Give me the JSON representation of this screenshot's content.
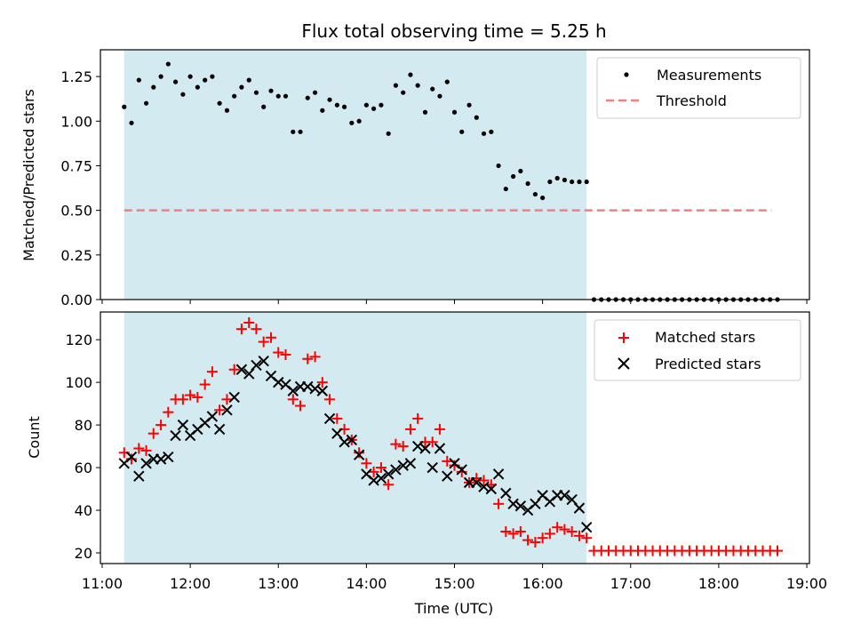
{
  "figure": {
    "title": "Flux total observing time = 5.25 h",
    "xlabel": "Time (UTC)",
    "x_ticks": [
      "11:00",
      "12:00",
      "13:00",
      "14:00",
      "15:00",
      "16:00",
      "17:00",
      "18:00",
      "19:00"
    ],
    "x_tick_hours": [
      11,
      12,
      13,
      14,
      15,
      16,
      17,
      18,
      19
    ],
    "xlim_hours": [
      10.98,
      19.03
    ],
    "observing_window_hours": [
      11.25,
      16.5
    ],
    "observing_window_color": "#d3eaf0"
  },
  "chart_data": [
    {
      "type": "scatter",
      "ylabel": "Matched/Predicted stars",
      "ylim": [
        0,
        1.4
      ],
      "y_ticks": [
        "0.00",
        "0.25",
        "0.50",
        "0.75",
        "1.00",
        "1.25"
      ],
      "y_tick_values": [
        0,
        0.25,
        0.5,
        0.75,
        1.0,
        1.25
      ],
      "legend_position": "top-right",
      "series": [
        {
          "name": "Measurements",
          "marker": "dot",
          "color": "#000000",
          "x_hours": [
            11.25,
            11.333,
            11.417,
            11.5,
            11.583,
            11.667,
            11.75,
            11.833,
            11.917,
            12.0,
            12.083,
            12.167,
            12.25,
            12.333,
            12.417,
            12.5,
            12.583,
            12.667,
            12.75,
            12.833,
            12.917,
            13.0,
            13.083,
            13.167,
            13.25,
            13.333,
            13.417,
            13.5,
            13.583,
            13.667,
            13.75,
            13.833,
            13.917,
            14.0,
            14.083,
            14.167,
            14.25,
            14.333,
            14.417,
            14.5,
            14.583,
            14.667,
            14.75,
            14.833,
            14.917,
            15.0,
            15.083,
            15.167,
            15.25,
            15.333,
            15.417,
            15.5,
            15.583,
            15.667,
            15.75,
            15.833,
            15.917,
            16.0,
            16.083,
            16.167,
            16.25,
            16.333,
            16.417,
            16.5,
            16.583,
            16.667,
            16.75,
            16.833,
            16.917,
            17.0,
            17.083,
            17.167,
            17.25,
            17.333,
            17.417,
            17.5,
            17.583,
            17.667,
            17.75,
            17.833,
            17.917,
            18.0,
            18.083,
            18.167,
            18.25,
            18.333,
            18.417,
            18.5,
            18.583,
            18.667
          ],
          "values": [
            1.08,
            0.99,
            1.23,
            1.1,
            1.19,
            1.25,
            1.32,
            1.22,
            1.15,
            1.25,
            1.19,
            1.23,
            1.25,
            1.1,
            1.06,
            1.14,
            1.19,
            1.23,
            1.16,
            1.08,
            1.17,
            1.14,
            1.14,
            0.94,
            0.94,
            1.13,
            1.16,
            1.06,
            1.12,
            1.09,
            1.08,
            0.99,
            1.0,
            1.09,
            1.07,
            1.09,
            0.93,
            1.2,
            1.16,
            1.26,
            1.2,
            1.05,
            1.18,
            1.14,
            1.22,
            1.05,
            0.94,
            1.09,
            1.02,
            0.93,
            0.94,
            0.75,
            0.62,
            0.69,
            0.72,
            0.65,
            0.59,
            0.57,
            0.66,
            0.68,
            0.67,
            0.66,
            0.66,
            0.66,
            0,
            0,
            0,
            0,
            0,
            0,
            0,
            0,
            0,
            0,
            0,
            0,
            0,
            0,
            0,
            0,
            0,
            0,
            0,
            0,
            0,
            0,
            0,
            0,
            0,
            0
          ]
        },
        {
          "name": "Threshold",
          "marker": "dashed-line",
          "color": "#f08080",
          "x_hours": [
            11.25,
            18.6
          ],
          "values": [
            0.5,
            0.5
          ]
        }
      ]
    },
    {
      "type": "scatter",
      "ylabel": "Count",
      "ylim": [
        15,
        133
      ],
      "y_ticks": [
        "20",
        "40",
        "60",
        "80",
        "100",
        "120"
      ],
      "y_tick_values": [
        20,
        40,
        60,
        80,
        100,
        120
      ],
      "legend_position": "top-right",
      "series": [
        {
          "name": "Matched stars",
          "marker": "plus",
          "color": "#ff0000",
          "x_hours": [
            11.25,
            11.333,
            11.417,
            11.5,
            11.583,
            11.667,
            11.75,
            11.833,
            11.917,
            12.0,
            12.083,
            12.167,
            12.25,
            12.333,
            12.417,
            12.5,
            12.583,
            12.667,
            12.75,
            12.833,
            12.917,
            13.0,
            13.083,
            13.167,
            13.25,
            13.333,
            13.417,
            13.5,
            13.583,
            13.667,
            13.75,
            13.833,
            13.917,
            14.0,
            14.083,
            14.167,
            14.25,
            14.333,
            14.417,
            14.5,
            14.583,
            14.667,
            14.75,
            14.833,
            14.917,
            15.0,
            15.083,
            15.167,
            15.25,
            15.333,
            15.417,
            15.5,
            15.583,
            15.667,
            15.75,
            15.833,
            15.917,
            16.0,
            16.083,
            16.167,
            16.25,
            16.333,
            16.417,
            16.5,
            16.583,
            16.667,
            16.75,
            16.833,
            16.917,
            17.0,
            17.083,
            17.167,
            17.25,
            17.333,
            17.417,
            17.5,
            17.583,
            17.667,
            17.75,
            17.833,
            17.917,
            18.0,
            18.083,
            18.167,
            18.25,
            18.333,
            18.417,
            18.5,
            18.583,
            18.667
          ],
          "values": [
            67,
            64,
            69,
            68,
            76,
            80,
            86,
            92,
            92,
            94,
            93,
            99,
            105,
            87,
            92,
            106,
            125,
            128,
            125,
            119,
            121,
            114,
            113,
            92,
            89,
            111,
            112,
            100,
            92,
            83,
            78,
            73,
            67,
            62,
            58,
            60,
            52,
            71,
            70,
            78,
            83,
            72,
            72,
            78,
            63,
            61,
            58,
            53,
            55,
            54,
            52,
            43,
            30,
            29,
            30,
            26,
            25,
            27,
            29,
            32,
            31,
            30,
            28,
            27,
            21,
            21,
            21,
            21,
            21,
            21,
            21,
            21,
            21,
            21,
            21,
            21,
            21,
            21,
            21,
            21,
            21,
            21,
            21,
            21,
            21,
            21,
            21,
            21,
            21,
            21
          ]
        },
        {
          "name": "Predicted stars",
          "marker": "x",
          "color": "#000000",
          "x_hours": [
            11.25,
            11.333,
            11.417,
            11.5,
            11.583,
            11.667,
            11.75,
            11.833,
            11.917,
            12.0,
            12.083,
            12.167,
            12.25,
            12.333,
            12.417,
            12.5,
            12.583,
            12.667,
            12.75,
            12.833,
            12.917,
            13.0,
            13.083,
            13.167,
            13.25,
            13.333,
            13.417,
            13.5,
            13.583,
            13.667,
            13.75,
            13.833,
            13.917,
            14.0,
            14.083,
            14.167,
            14.25,
            14.333,
            14.417,
            14.5,
            14.583,
            14.667,
            14.75,
            14.833,
            14.917,
            15.0,
            15.083,
            15.167,
            15.25,
            15.333,
            15.417,
            15.5,
            15.583,
            15.667,
            15.75,
            15.833,
            15.917,
            16.0,
            16.083,
            16.167,
            16.25,
            16.333,
            16.417,
            16.5
          ],
          "values": [
            62,
            65,
            56,
            62,
            64,
            64,
            65,
            75,
            80,
            75,
            78,
            81,
            84,
            78,
            87,
            93,
            106,
            104,
            108,
            110,
            103,
            100,
            99,
            96,
            98,
            98,
            97,
            96,
            83,
            76,
            72,
            73,
            66,
            57,
            54,
            55,
            57,
            59,
            61,
            62,
            70,
            69,
            60,
            69,
            56,
            62,
            59,
            53,
            53,
            51,
            50,
            57,
            48,
            43,
            42,
            40,
            43,
            47,
            44,
            47,
            47,
            45,
            41,
            32
          ]
        }
      ]
    }
  ]
}
